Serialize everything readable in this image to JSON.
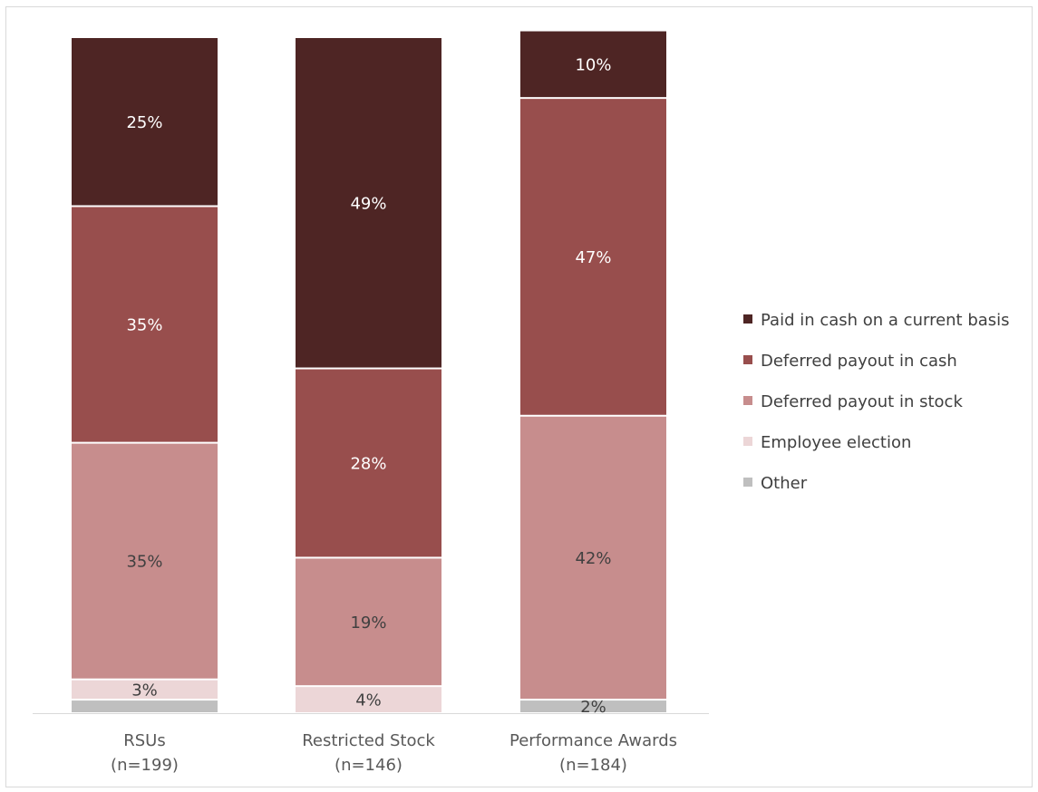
{
  "chart_data": {
    "type": "bar",
    "stacked": true,
    "normalized_to_100": true,
    "categories": [
      {
        "name": "RSUs",
        "n": "(n=199)"
      },
      {
        "name": "Restricted Stock",
        "n": "(n=146)"
      },
      {
        "name": "Performance Awards",
        "n": "(n=184)"
      }
    ],
    "series": [
      {
        "name": "Other",
        "color": "#bfbfbf",
        "values": [
          2,
          0,
          2
        ],
        "labels": [
          "",
          "",
          "2%"
        ],
        "label_color": "#404040"
      },
      {
        "name": "Employee election",
        "color": "#ecd6d7",
        "values": [
          3,
          4,
          0
        ],
        "labels": [
          "3%",
          "4%",
          ""
        ],
        "label_color": "#404040"
      },
      {
        "name": "Deferred payout in stock",
        "color": "#c78d8d",
        "values": [
          35,
          19,
          42
        ],
        "labels": [
          "35%",
          "19%",
          "42%"
        ],
        "label_color": "#404040"
      },
      {
        "name": "Deferred payout in cash",
        "color": "#984e4d",
        "values": [
          35,
          28,
          47
        ],
        "labels": [
          "35%",
          "28%",
          "47%"
        ],
        "label_color": "#ffffff"
      },
      {
        "name": "Paid in cash on a current basis",
        "color": "#4e2524",
        "values": [
          25,
          49,
          10
        ],
        "labels": [
          "25%",
          "49%",
          "10%"
        ],
        "label_color": "#ffffff"
      }
    ],
    "legend_order": [
      "Paid in cash on a current basis",
      "Deferred payout in cash",
      "Deferred payout in stock",
      "Employee election",
      "Other"
    ],
    "legend_position": "right",
    "title": "",
    "xlabel": "",
    "ylabel": "",
    "ylim": [
      0,
      100
    ],
    "grid": false,
    "axis_color": "#d9d9d9"
  }
}
